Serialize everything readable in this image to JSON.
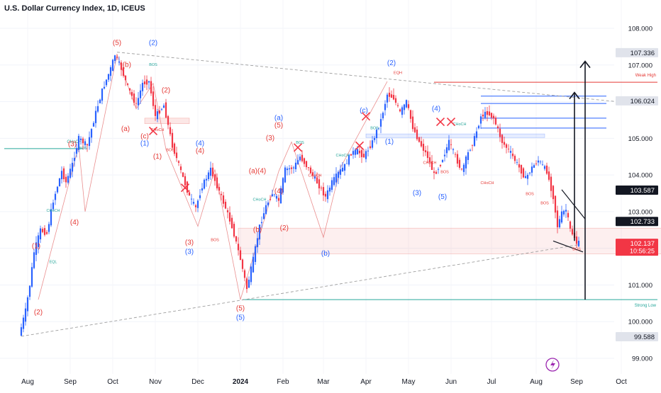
{
  "chart_data": {
    "type": "candlestick",
    "title": "U.S. Dollar Currency Index, 1D, ICEUS",
    "ylim": [
      98.9,
      108.6
    ],
    "x_ticks": [
      {
        "label": "Aug",
        "t": 0.05
      },
      {
        "label": "Sep",
        "t": 1.05
      },
      {
        "label": "Oct",
        "t": 2.05
      },
      {
        "label": "Nov",
        "t": 3.05
      },
      {
        "label": "Dec",
        "t": 4.05
      },
      {
        "label": "2024",
        "t": 5.05
      },
      {
        "label": "Feb",
        "t": 6.05
      },
      {
        "label": "Mar",
        "t": 7.0
      },
      {
        "label": "Apr",
        "t": 8.0
      },
      {
        "label": "May",
        "t": 9.0
      },
      {
        "label": "Jun",
        "t": 10.0
      },
      {
        "label": "Jul",
        "t": 10.95
      },
      {
        "label": "Aug",
        "t": 12.0
      },
      {
        "label": "Sep",
        "t": 12.95
      },
      {
        "label": "Oct",
        "t": 14.0
      }
    ],
    "y_ticks": [
      108.0,
      107.0,
      106.0,
      105.0,
      104.0,
      103.0,
      102.0,
      101.0,
      100.0,
      99.0
    ],
    "y_tick_labels": [
      "108.000",
      "107.000",
      "106.000",
      "105.000",
      "104.000",
      "103.000",
      "102.000",
      "101.000",
      "100.000",
      "99.000"
    ],
    "price_markers": [
      {
        "value": 107.336,
        "label": "107.336",
        "style": "gray"
      },
      {
        "value": 106.024,
        "label": "106.024",
        "style": "gray"
      },
      {
        "value": 103.587,
        "label": "103.587",
        "style": "dark"
      },
      {
        "value": 102.733,
        "label": "102.733",
        "style": "dark"
      },
      {
        "value": 102.137,
        "label": "102.137",
        "sub": "10:56:25",
        "style": "red"
      },
      {
        "value": 99.588,
        "label": "99.588",
        "style": "gray"
      }
    ],
    "price_path": [
      [
        -0.1,
        99.62
      ],
      [
        0.05,
        100.3
      ],
      [
        0.15,
        101.0
      ],
      [
        0.25,
        101.9
      ],
      [
        0.4,
        102.5
      ],
      [
        0.55,
        102.4
      ],
      [
        0.7,
        103.3
      ],
      [
        0.9,
        104.1
      ],
      [
        1.0,
        103.8
      ],
      [
        1.15,
        104.3
      ],
      [
        1.3,
        105.0
      ],
      [
        1.5,
        104.8
      ],
      [
        1.7,
        105.7
      ],
      [
        1.85,
        106.3
      ],
      [
        2.05,
        106.9
      ],
      [
        2.15,
        107.28
      ],
      [
        2.3,
        106.9
      ],
      [
        2.45,
        106.4
      ],
      [
        2.65,
        105.9
      ],
      [
        2.8,
        106.5
      ],
      [
        2.95,
        106.55
      ],
      [
        3.1,
        105.6
      ],
      [
        3.3,
        105.9
      ],
      [
        3.5,
        104.8
      ],
      [
        3.7,
        104.1
      ],
      [
        3.9,
        103.4
      ],
      [
        4.05,
        103.1
      ],
      [
        4.2,
        103.7
      ],
      [
        4.4,
        104.15
      ],
      [
        4.55,
        103.7
      ],
      [
        4.75,
        103.1
      ],
      [
        4.9,
        102.6
      ],
      [
        5.1,
        101.7
      ],
      [
        5.25,
        100.9
      ],
      [
        5.4,
        101.7
      ],
      [
        5.55,
        102.6
      ],
      [
        5.7,
        103.15
      ],
      [
        5.85,
        103.5
      ],
      [
        6.0,
        103.3
      ],
      [
        6.15,
        104.15
      ],
      [
        6.35,
        104.2
      ],
      [
        6.5,
        104.5
      ],
      [
        6.65,
        104.25
      ],
      [
        6.85,
        103.9
      ],
      [
        7.0,
        103.6
      ],
      [
        7.1,
        103.4
      ],
      [
        7.25,
        103.8
      ],
      [
        7.4,
        104.05
      ],
      [
        7.55,
        104.25
      ],
      [
        7.7,
        104.6
      ],
      [
        7.85,
        104.65
      ],
      [
        8.0,
        104.5
      ],
      [
        8.2,
        104.9
      ],
      [
        8.4,
        105.5
      ],
      [
        8.55,
        106.2
      ],
      [
        8.7,
        106.1
      ],
      [
        8.85,
        105.7
      ],
      [
        9.0,
        106.0
      ],
      [
        9.15,
        105.3
      ],
      [
        9.3,
        104.9
      ],
      [
        9.5,
        104.5
      ],
      [
        9.65,
        104.0
      ],
      [
        9.8,
        104.3
      ],
      [
        10.0,
        104.9
      ],
      [
        10.15,
        104.5
      ],
      [
        10.3,
        104.1
      ],
      [
        10.45,
        104.6
      ],
      [
        10.6,
        105.0
      ],
      [
        10.75,
        105.6
      ],
      [
        10.9,
        105.7
      ],
      [
        11.05,
        105.55
      ],
      [
        11.25,
        104.9
      ],
      [
        11.45,
        104.6
      ],
      [
        11.6,
        104.3
      ],
      [
        11.8,
        103.9
      ],
      [
        11.95,
        104.2
      ],
      [
        12.1,
        104.4
      ],
      [
        12.3,
        104.1
      ],
      [
        12.45,
        103.4
      ],
      [
        12.55,
        102.6
      ],
      [
        12.65,
        102.95
      ],
      [
        12.75,
        103.05
      ],
      [
        12.85,
        102.5
      ],
      [
        12.95,
        102.3
      ],
      [
        13.0,
        102.14
      ]
    ],
    "zones": [
      {
        "t0": 5.0,
        "t1": 15.15,
        "y0": 101.85,
        "y1": 102.55,
        "color": "#e53935",
        "opacity": 0.08
      },
      {
        "t0": 2.8,
        "t1": 3.85,
        "y0": 105.4,
        "y1": 105.55,
        "color": "#e53935",
        "opacity": 0.12
      },
      {
        "t0": 8.0,
        "t1": 12.2,
        "y0": 105.02,
        "y1": 105.12,
        "color": "#2962ff",
        "opacity": 0.12
      }
    ],
    "levels": [
      {
        "t0": 9.6,
        "t1": 14.85,
        "y": 106.53,
        "color": "#e53935",
        "label": "Weak High"
      },
      {
        "t0": 5.1,
        "t1": 14.85,
        "y": 100.6,
        "color": "#26a69a",
        "label": "Strong Low"
      },
      {
        "t0": -0.5,
        "t1": 1.35,
        "y": 104.72,
        "color": "#26a69a",
        "label": "CHoCH"
      },
      {
        "t0": 10.7,
        "t1": 13.65,
        "y": 106.15,
        "color": "#2962ff",
        "label": ""
      },
      {
        "t0": 10.7,
        "t1": 13.65,
        "y": 105.95,
        "color": "#2962ff",
        "label": ""
      },
      {
        "t0": 10.7,
        "t1": 13.65,
        "y": 105.55,
        "color": "#2962ff",
        "label": ""
      },
      {
        "t0": 10.7,
        "t1": 13.65,
        "y": 105.28,
        "color": "#2962ff",
        "label": ""
      }
    ],
    "trend_lines": [
      {
        "from": [
          2.15,
          107.35
        ],
        "to": [
          13.9,
          106.0
        ],
        "color": "#9e9e9e",
        "dashed": true
      },
      {
        "from": [
          -0.1,
          99.6
        ],
        "to": [
          13.0,
          102.1
        ],
        "color": "#9e9e9e",
        "dashed": true
      },
      {
        "from": [
          12.4,
          102.2
        ],
        "to": [
          13.1,
          101.9
        ],
        "color": "#131722",
        "dashed": false
      },
      {
        "from": [
          12.6,
          103.6
        ],
        "to": [
          13.15,
          102.8
        ],
        "color": "#131722",
        "dashed": false
      }
    ],
    "arrows": [
      {
        "from": [
          13.15,
          100.6
        ],
        "to": [
          13.15,
          107.1
        ]
      },
      {
        "from": [
          12.9,
          102.2
        ],
        "to": [
          12.9,
          106.25
        ]
      }
    ],
    "wave_labels": [
      {
        "t": 2.15,
        "y": 107.55,
        "text": "(5)",
        "color": "#e53935"
      },
      {
        "t": 3.0,
        "y": 107.55,
        "text": "(2)",
        "color": "#2962ff"
      },
      {
        "t": 2.38,
        "y": 106.95,
        "text": "(b)",
        "color": "#e53935"
      },
      {
        "t": 3.3,
        "y": 106.25,
        "text": "(2)",
        "color": "#e53935"
      },
      {
        "t": 2.35,
        "y": 105.2,
        "text": "(a)",
        "color": "#e53935"
      },
      {
        "t": 2.8,
        "y": 105.0,
        "text": "(c)",
        "color": "#e53935"
      },
      {
        "t": 2.8,
        "y": 104.8,
        "text": "(1)",
        "color": "#2962ff"
      },
      {
        "t": 3.1,
        "y": 104.45,
        "text": "(1)",
        "color": "#e53935"
      },
      {
        "t": 4.1,
        "y": 104.8,
        "text": "(4)",
        "color": "#2962ff"
      },
      {
        "t": 4.1,
        "y": 104.6,
        "text": "(4)",
        "color": "#e53935"
      },
      {
        "t": 1.1,
        "y": 104.78,
        "text": "(3)",
        "color": "#e53935"
      },
      {
        "t": 0.25,
        "y": 102.0,
        "text": "(1)",
        "color": "#e53935"
      },
      {
        "t": 1.15,
        "y": 102.65,
        "text": "(4)",
        "color": "#e53935"
      },
      {
        "t": 0.3,
        "y": 100.2,
        "text": "(2)",
        "color": "#e53935"
      },
      {
        "t": 3.85,
        "y": 102.1,
        "text": "(3)",
        "color": "#e53935"
      },
      {
        "t": 3.85,
        "y": 101.85,
        "text": "(3)",
        "color": "#2962ff"
      },
      {
        "t": 5.05,
        "y": 100.3,
        "text": "(5)",
        "color": "#e53935"
      },
      {
        "t": 5.05,
        "y": 100.05,
        "text": "(5)",
        "color": "#2962ff"
      },
      {
        "t": 5.95,
        "y": 105.5,
        "text": "(a)",
        "color": "#2962ff"
      },
      {
        "t": 5.95,
        "y": 105.3,
        "text": "(5)",
        "color": "#e53935"
      },
      {
        "t": 5.75,
        "y": 104.95,
        "text": "(3)",
        "color": "#e53935"
      },
      {
        "t": 5.45,
        "y": 104.05,
        "text": "(a)(4)",
        "color": "#e53935"
      },
      {
        "t": 5.95,
        "y": 103.5,
        "text": "(4)",
        "color": "#e53935"
      },
      {
        "t": 5.45,
        "y": 102.45,
        "text": "(b)",
        "color": "#e53935"
      },
      {
        "t": 6.08,
        "y": 102.5,
        "text": "(2)",
        "color": "#e53935"
      },
      {
        "t": 7.05,
        "y": 101.8,
        "text": "(b)",
        "color": "#2962ff"
      },
      {
        "t": 7.95,
        "y": 105.7,
        "text": "(c)",
        "color": "#2962ff"
      },
      {
        "t": 8.6,
        "y": 107.0,
        "text": "(2)",
        "color": "#2962ff"
      },
      {
        "t": 8.55,
        "y": 104.85,
        "text": "(1)",
        "color": "#2962ff"
      },
      {
        "t": 9.65,
        "y": 105.75,
        "text": "(4)",
        "color": "#2962ff"
      },
      {
        "t": 9.2,
        "y": 103.45,
        "text": "(3)",
        "color": "#2962ff"
      },
      {
        "t": 9.8,
        "y": 103.35,
        "text": "(5)",
        "color": "#2962ff"
      }
    ],
    "smc_labels": [
      {
        "t": 3.0,
        "y": 106.98,
        "text": "BOS",
        "color": "#26a69a"
      },
      {
        "t": 3.1,
        "y": 105.2,
        "text": "CHoCH",
        "color": "#e53935"
      },
      {
        "t": 3.4,
        "y": 104.65,
        "text": "BOS",
        "color": "#e53935"
      },
      {
        "t": 4.45,
        "y": 102.2,
        "text": "BOS",
        "color": "#e53935"
      },
      {
        "t": 0.65,
        "y": 103.0,
        "text": "CHoCH",
        "color": "#26a69a"
      },
      {
        "t": 1.35,
        "y": 104.7,
        "text": "BOS",
        "color": "#26a69a"
      },
      {
        "t": 0.65,
        "y": 101.6,
        "text": "EQL",
        "color": "#26a69a"
      },
      {
        "t": 5.5,
        "y": 103.3,
        "text": "CHoCH",
        "color": "#26a69a"
      },
      {
        "t": 6.45,
        "y": 104.85,
        "text": "BOS",
        "color": "#26a69a"
      },
      {
        "t": 7.45,
        "y": 104.5,
        "text": "CHoCH",
        "color": "#26a69a"
      },
      {
        "t": 6.8,
        "y": 103.95,
        "text": "CHoCH",
        "color": "#e53935"
      },
      {
        "t": 8.2,
        "y": 105.25,
        "text": "BOS",
        "color": "#26a69a"
      },
      {
        "t": 8.75,
        "y": 106.75,
        "text": "EQH",
        "color": "#e53935"
      },
      {
        "t": 9.5,
        "y": 104.3,
        "text": "CHoCH",
        "color": "#e53935"
      },
      {
        "t": 9.85,
        "y": 104.05,
        "text": "BOS",
        "color": "#e53935"
      },
      {
        "t": 10.2,
        "y": 105.35,
        "text": "CHoCH",
        "color": "#26a69a"
      },
      {
        "t": 10.85,
        "y": 103.75,
        "text": "CHoCH",
        "color": "#e53935"
      },
      {
        "t": 11.85,
        "y": 103.45,
        "text": "BOS",
        "color": "#e53935"
      },
      {
        "t": 12.2,
        "y": 103.2,
        "text": "BOS",
        "color": "#e53935"
      },
      {
        "t": 12.95,
        "y": 101.95,
        "text": "BOS",
        "color": "#e53935"
      }
    ],
    "x_marks": [
      {
        "t": 3.0,
        "y": 105.2
      },
      {
        "t": 3.75,
        "y": 103.65
      },
      {
        "t": 6.4,
        "y": 104.75
      },
      {
        "t": 7.85,
        "y": 104.8
      },
      {
        "t": 8.0,
        "y": 105.6
      },
      {
        "t": 9.75,
        "y": 105.45
      },
      {
        "t": 10.0,
        "y": 105.45
      }
    ],
    "wave_path": [
      [
        0.3,
        100.6
      ],
      [
        1.25,
        104.8
      ],
      [
        1.4,
        103.0
      ],
      [
        2.15,
        107.28
      ],
      [
        2.6,
        105.8
      ],
      [
        3.0,
        106.5
      ],
      [
        3.3,
        104.7
      ],
      [
        4.05,
        102.6
      ],
      [
        4.45,
        104.15
      ],
      [
        5.05,
        100.6
      ],
      [
        5.95,
        104.1
      ],
      [
        6.25,
        104.9
      ],
      [
        7.0,
        102.3
      ],
      [
        7.4,
        104.2
      ],
      [
        8.5,
        106.55
      ]
    ]
  },
  "watermark_icon": "lightning-icon"
}
